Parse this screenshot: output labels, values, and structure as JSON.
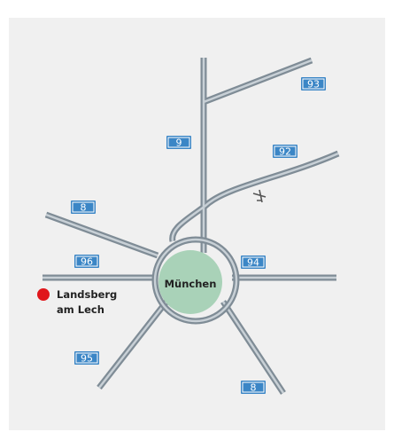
{
  "center": {
    "label": "München"
  },
  "city": {
    "lines": [
      "Landsberg",
      "am Lech"
    ]
  },
  "routes": [
    {
      "label": "93"
    },
    {
      "label": "9"
    },
    {
      "label": "92"
    },
    {
      "label": "8"
    },
    {
      "label": "96"
    },
    {
      "label": "94"
    },
    {
      "label": "95"
    },
    {
      "label": "8"
    }
  ]
}
